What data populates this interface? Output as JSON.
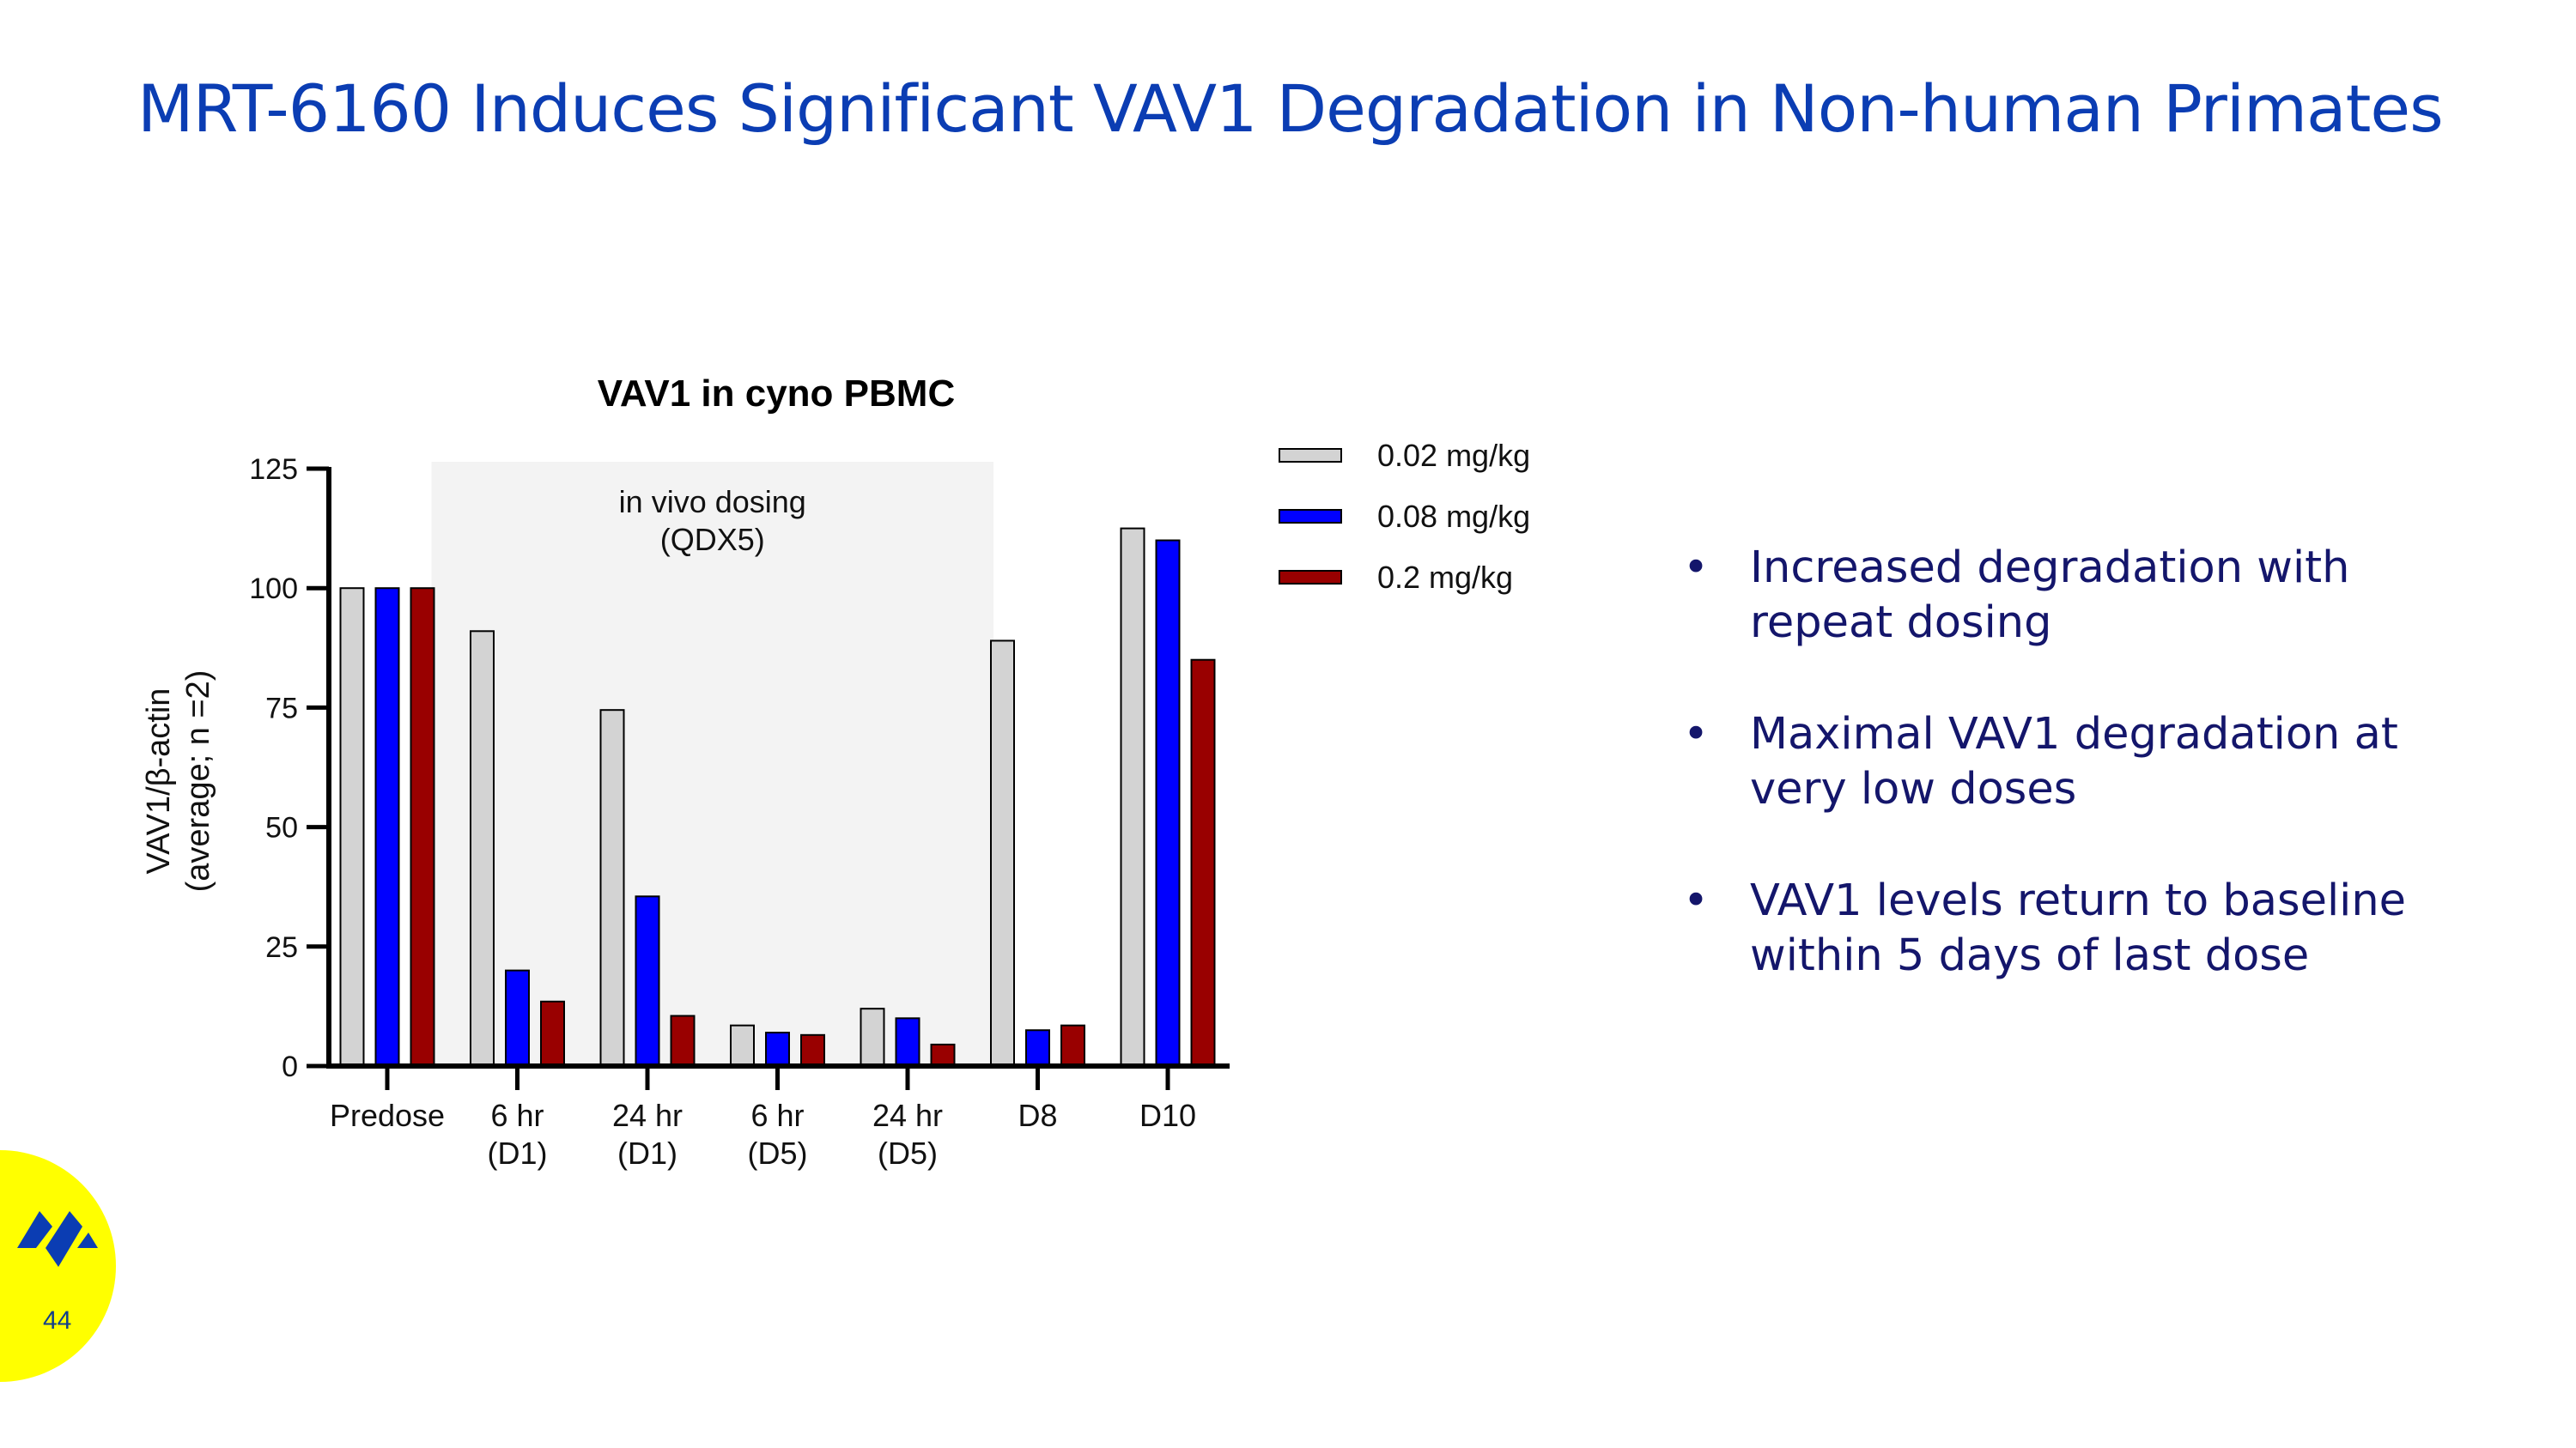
{
  "slide": {
    "title": "MRT-6160 Induces Significant VAV1 Degradation in Non-human Primates",
    "page_number": "44",
    "bullets": [
      {
        "lines": [
          "Increased degradation with",
          "repeat dosing"
        ]
      },
      {
        "lines": [
          "Maximal VAV1 degradation at",
          "very low doses"
        ]
      },
      {
        "lines": [
          "VAV1 levels return to baseline",
          "within 5 days of last dose"
        ]
      }
    ],
    "colors": {
      "title": "#0b3db3",
      "bullets": "#14166b",
      "badge": "#ffff00",
      "logo": "#0b3db3"
    }
  },
  "chart_data": {
    "type": "bar",
    "title": "VAV1 in cyno PBMC",
    "ylabel_lines": [
      "VAV1/β-actin",
      "(average; n =2)"
    ],
    "xlabel": "",
    "ylim": [
      0,
      125
    ],
    "yticks": [
      0,
      25,
      50,
      75,
      100,
      125
    ],
    "categories": [
      [
        "Predose"
      ],
      [
        "6 hr",
        "(D1)"
      ],
      [
        "24 hr",
        "(D1)"
      ],
      [
        "6 hr",
        "(D5)"
      ],
      [
        "24 hr",
        "(D5)"
      ],
      [
        "D8"
      ],
      [
        "D10"
      ]
    ],
    "series": [
      {
        "name": "0.02 mg/kg",
        "color": "#d3d3d3",
        "values": [
          100,
          91,
          74.5,
          8.5,
          12,
          89,
          112.5
        ]
      },
      {
        "name": "0.08 mg/kg",
        "color": "#0000ff",
        "values": [
          100,
          20,
          35.5,
          7,
          10,
          7.5,
          110
        ]
      },
      {
        "name": "0.2 mg/kg",
        "color": "#990000",
        "values": [
          100,
          13.5,
          10.5,
          6.5,
          4.5,
          8.5,
          85
        ]
      }
    ],
    "annotation": {
      "lines": [
        "in vivo dosing",
        "(QDX5)"
      ],
      "span_categories": [
        1,
        4
      ],
      "shade": "#f3f3f3"
    },
    "legend_position": "top-right",
    "grid": false
  }
}
